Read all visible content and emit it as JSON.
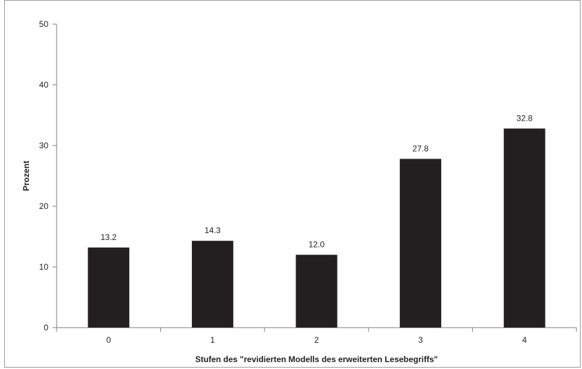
{
  "chart_data": {
    "type": "bar",
    "categories": [
      "0",
      "1",
      "2",
      "3",
      "4"
    ],
    "values": [
      13.2,
      14.3,
      12.0,
      27.8,
      32.8
    ],
    "data_labels": [
      "13.2",
      "14.3",
      "12.0",
      "27.8",
      "32.8"
    ],
    "title": "",
    "xlabel": "Stufen des \"revidierten Modells des erweiterten Lesebegriffs\"",
    "ylabel": "Prozent",
    "ylim": [
      0,
      50
    ],
    "yticks": [
      0,
      10,
      20,
      30,
      40,
      50
    ],
    "ytick_labels": [
      "0",
      "10",
      "20",
      "30",
      "40",
      "50"
    ],
    "grid": false,
    "legend": "none",
    "bar_color": "#231f20",
    "axis_color": "#7f7f7f"
  }
}
